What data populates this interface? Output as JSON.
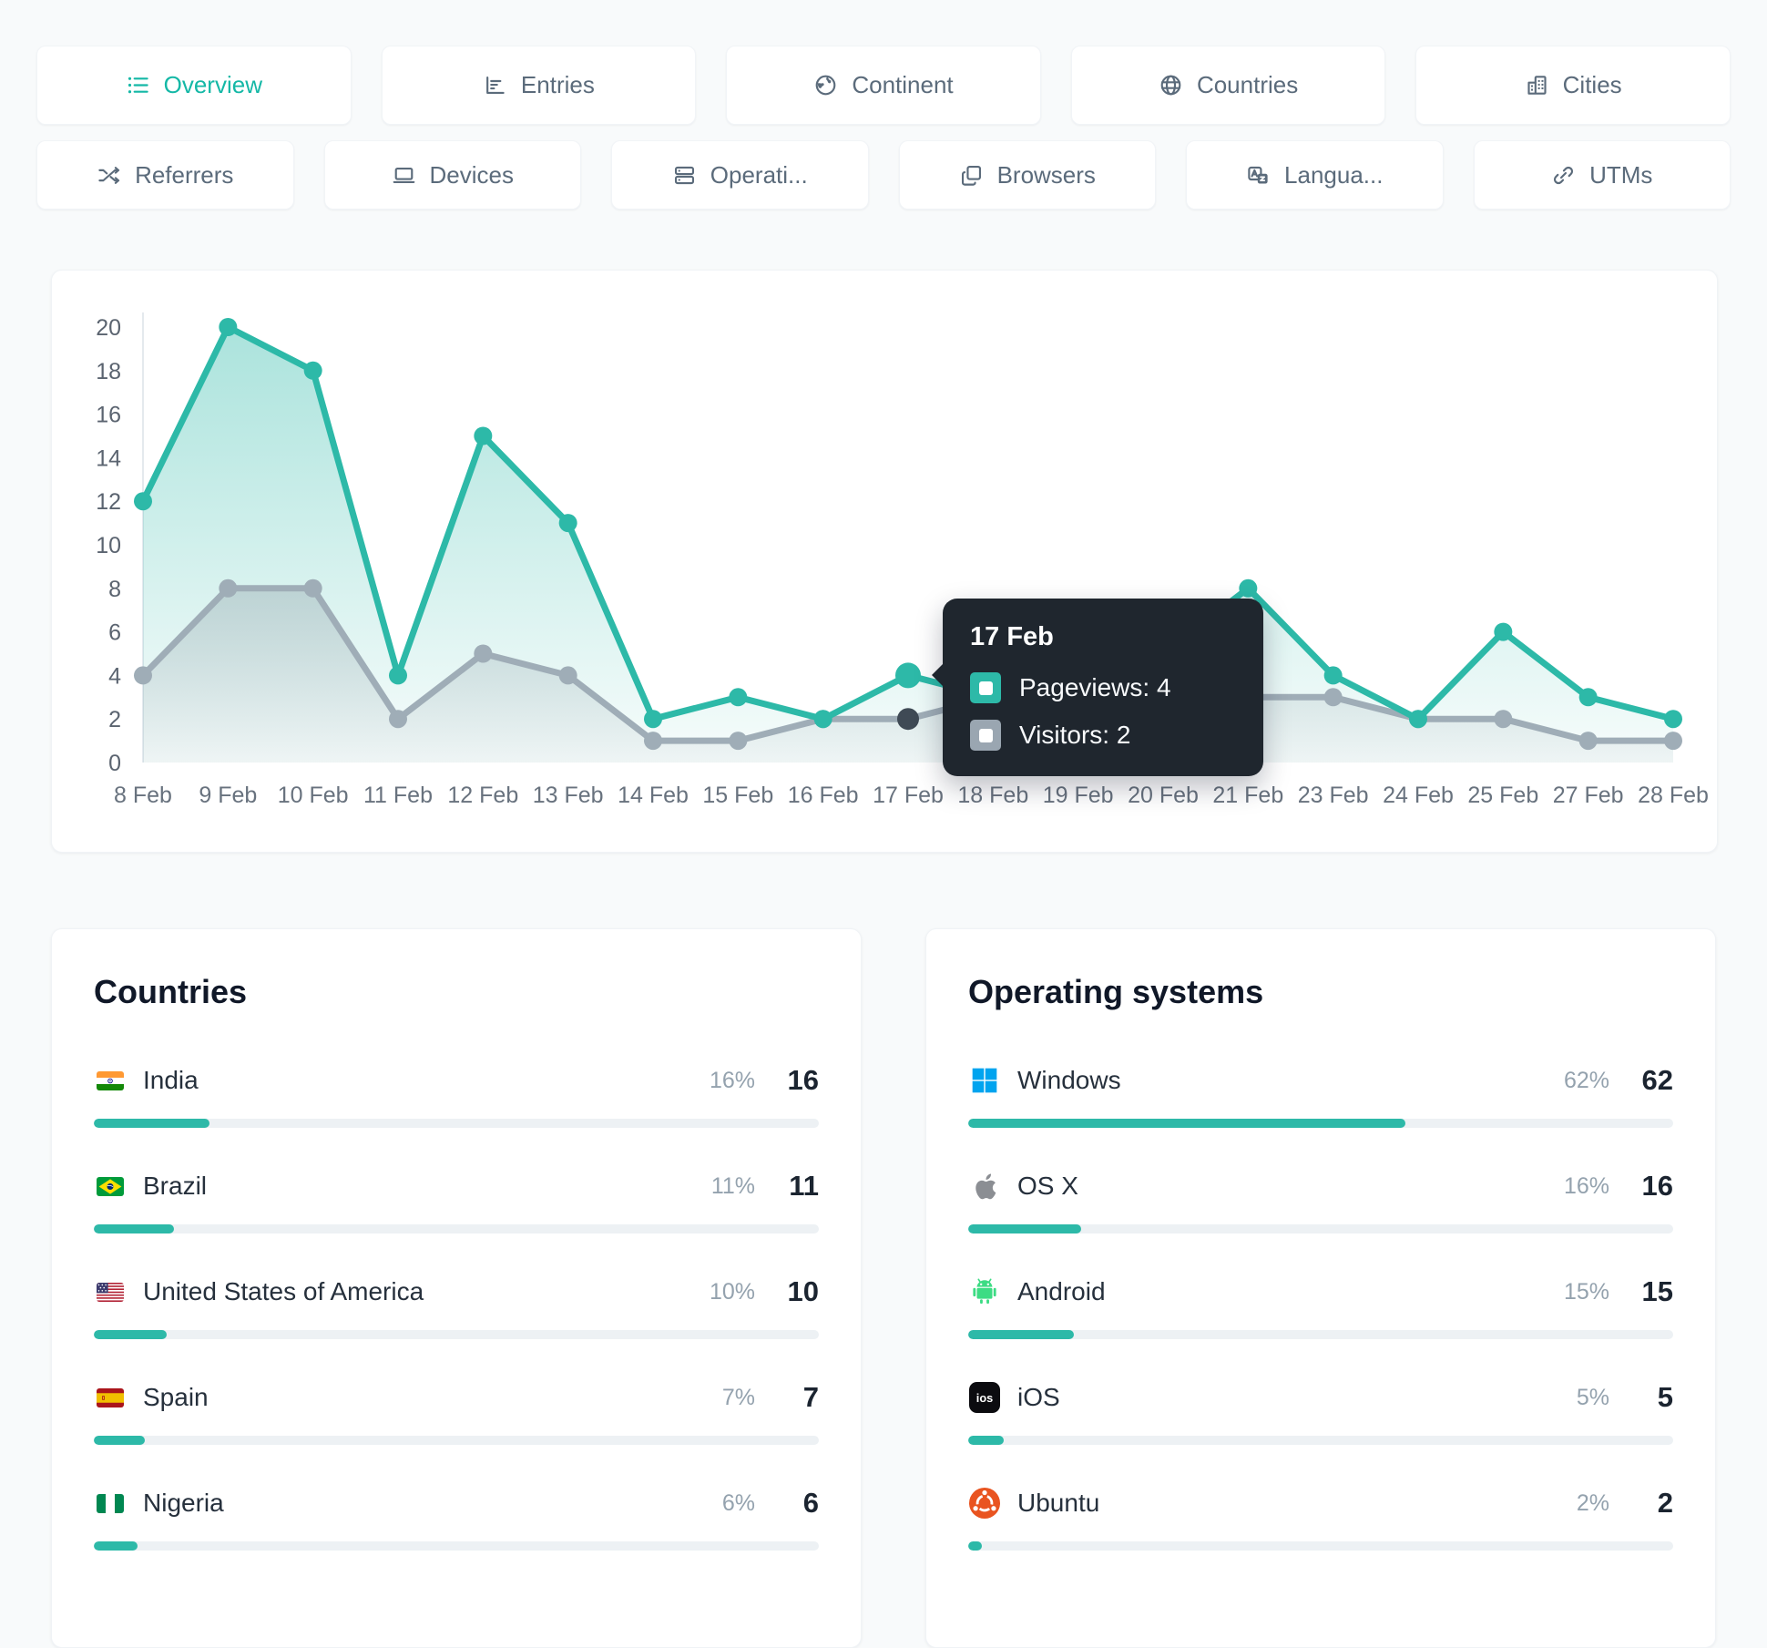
{
  "accent": "#2db9a8",
  "active_tab_color": "#14b8a6",
  "tabs_row1": [
    {
      "id": "overview",
      "label": "Overview",
      "icon": "list-icon",
      "active": true
    },
    {
      "id": "entries",
      "label": "Entries",
      "icon": "bar-chart-icon",
      "active": false
    },
    {
      "id": "continent",
      "label": "Continent",
      "icon": "earth-icon",
      "active": false
    },
    {
      "id": "countries",
      "label": "Countries",
      "icon": "globe-icon",
      "active": false
    },
    {
      "id": "cities",
      "label": "Cities",
      "icon": "buildings-icon",
      "active": false
    }
  ],
  "tabs_row2": [
    {
      "id": "referrers",
      "label": "Referrers",
      "icon": "shuffle-icon",
      "active": false
    },
    {
      "id": "devices",
      "label": "Devices",
      "icon": "laptop-icon",
      "active": false
    },
    {
      "id": "operating-systems",
      "label": "Operati...",
      "icon": "server-icon",
      "active": false
    },
    {
      "id": "browsers",
      "label": "Browsers",
      "icon": "browser-stack-icon",
      "active": false
    },
    {
      "id": "languages",
      "label": "Langua...",
      "icon": "translate-icon",
      "active": false
    },
    {
      "id": "utms",
      "label": "UTMs",
      "icon": "link-icon",
      "active": false
    }
  ],
  "chart_data": {
    "type": "line",
    "categories": [
      "8 Feb",
      "9 Feb",
      "10 Feb",
      "11 Feb",
      "12 Feb",
      "13 Feb",
      "14 Feb",
      "15 Feb",
      "16 Feb",
      "17 Feb",
      "18 Feb",
      "19 Feb",
      "20 Feb",
      "21 Feb",
      "23 Feb",
      "24 Feb",
      "25 Feb",
      "27 Feb",
      "28 Feb"
    ],
    "series": [
      {
        "name": "Pageviews",
        "color": "#2db9a8",
        "values": [
          12,
          20,
          18,
          4,
          15,
          11,
          2,
          3,
          2,
          4,
          3,
          3,
          5,
          8,
          4,
          2,
          6,
          3,
          2
        ]
      },
      {
        "name": "Visitors",
        "color": "#9fadb7",
        "values": [
          4,
          8,
          8,
          2,
          5,
          4,
          1,
          1,
          2,
          2,
          3,
          3,
          3,
          3,
          3,
          2,
          2,
          1,
          1
        ]
      }
    ],
    "ylim": [
      0,
      20
    ],
    "ytick_step": 2,
    "grid": false,
    "legend_position": "none",
    "hover_index": 9,
    "hover_dot_colors": {
      "pageviews": "#2db9a8",
      "visitors": "#3f4a55"
    }
  },
  "tooltip": {
    "date": "17 Feb",
    "rows": [
      {
        "label": "Pageviews",
        "value": "4",
        "color": "#2db9a8"
      },
      {
        "label": "Visitors",
        "value": "2",
        "color": "#9aa6b1"
      }
    ]
  },
  "panels": {
    "countries": {
      "title": "Countries",
      "rows": [
        {
          "name": "India",
          "flag": "india",
          "percent": "16%",
          "count": "16"
        },
        {
          "name": "Brazil",
          "flag": "brazil",
          "percent": "11%",
          "count": "11"
        },
        {
          "name": "United States of America",
          "flag": "usa",
          "percent": "10%",
          "count": "10"
        },
        {
          "name": "Spain",
          "flag": "spain",
          "percent": "7%",
          "count": "7"
        },
        {
          "name": "Nigeria",
          "flag": "nigeria",
          "percent": "6%",
          "count": "6"
        }
      ]
    },
    "os": {
      "title": "Operating systems",
      "rows": [
        {
          "name": "Windows",
          "icon": "windows",
          "percent": "62%",
          "count": "62"
        },
        {
          "name": "OS X",
          "icon": "apple",
          "percent": "16%",
          "count": "16"
        },
        {
          "name": "Android",
          "icon": "android",
          "percent": "15%",
          "count": "15"
        },
        {
          "name": "iOS",
          "icon": "ios",
          "percent": "5%",
          "count": "5"
        },
        {
          "name": "Ubuntu",
          "icon": "ubuntu",
          "percent": "2%",
          "count": "2"
        }
      ]
    }
  }
}
